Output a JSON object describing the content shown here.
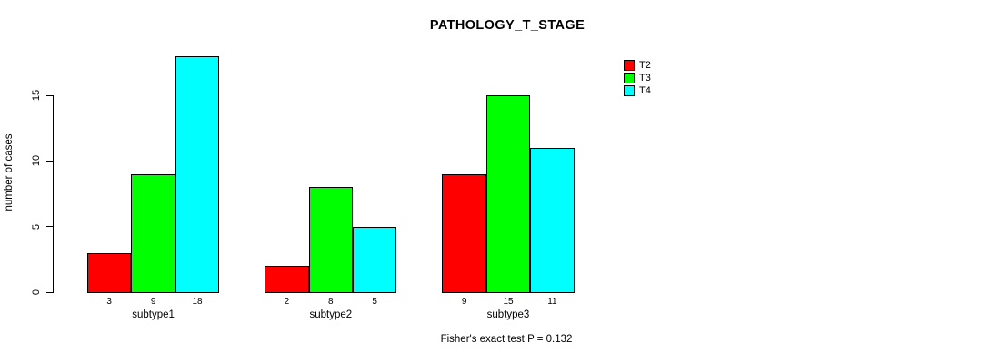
{
  "chart_data": {
    "type": "bar",
    "title": "PATHOLOGY_T_STAGE",
    "xlabel": "",
    "ylabel": "number of cases",
    "categories": [
      "subtype1",
      "subtype2",
      "subtype3"
    ],
    "series": [
      {
        "name": "T2",
        "color": "#FF0000",
        "values": [
          3,
          2,
          9
        ]
      },
      {
        "name": "T3",
        "color": "#00FF00",
        "values": [
          9,
          8,
          15
        ]
      },
      {
        "name": "T4",
        "color": "#00FFFF",
        "values": [
          18,
          5,
          11
        ]
      }
    ],
    "yticks": [
      0,
      5,
      10,
      15
    ],
    "ylim": [
      0,
      18
    ],
    "grid": false,
    "legend_position": "top-right",
    "bar_value_labels": true,
    "annotation": "Fisher's exact test P = 0.132"
  }
}
